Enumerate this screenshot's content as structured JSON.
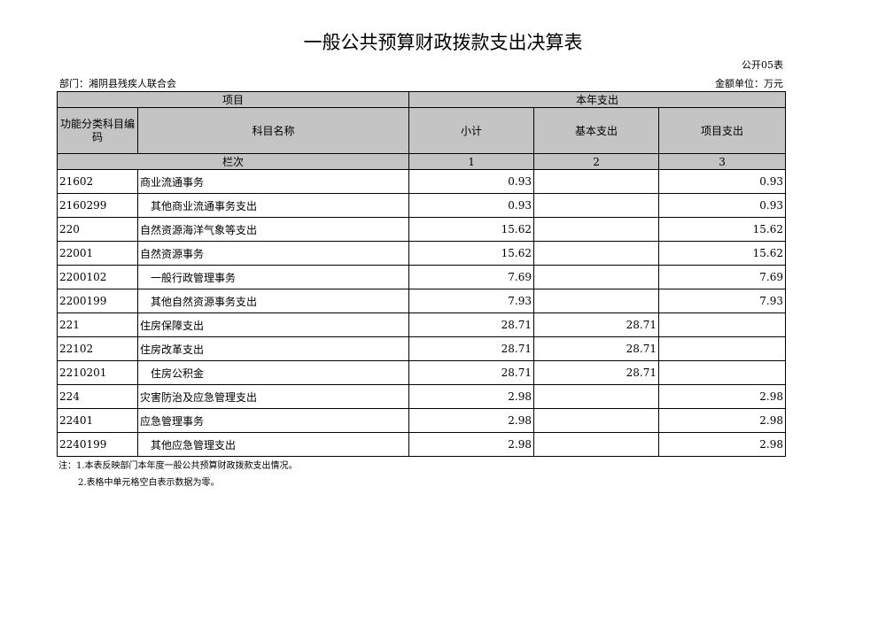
{
  "header": {
    "title": "一般公共预算财政拨款支出决算表",
    "form_no": "公开05表",
    "department": "部门：湘阴县残疾人联合会",
    "unit": "金额单位：万元"
  },
  "table": {
    "group_headers": [
      "项目",
      "本年支出"
    ],
    "columns": [
      "功能分类科目编码",
      "科目名称",
      "小计",
      "基本支出",
      "项目支出"
    ],
    "index_label": "栏次",
    "index_numbers": [
      "1",
      "2",
      "3"
    ],
    "rows": [
      {
        "code": "21602",
        "name": "商业流通事务",
        "subtotal": "0.93",
        "project": "0.93"
      },
      {
        "code": "2160299",
        "name": "其他商业流通事务支出",
        "subtotal": "0.93",
        "project": "0.93"
      },
      {
        "code": "220",
        "name": "自然资源海洋气象等支出",
        "subtotal": "15.62",
        "project": "15.62"
      },
      {
        "code": "22001",
        "name": "自然资源事务",
        "subtotal": "15.62",
        "project": "15.62"
      },
      {
        "code": "2200102",
        "name": "一般行政管理事务",
        "subtotal": "7.69",
        "project": "7.69"
      },
      {
        "code": "2200199",
        "name": "其他自然资源事务支出",
        "subtotal": "7.93",
        "project": "7.93"
      },
      {
        "code": "221",
        "name": "住房保障支出",
        "subtotal": "28.71",
        "basic": "28.71"
      },
      {
        "code": "22102",
        "name": "住房改革支出",
        "subtotal": "28.71",
        "basic": "28.71"
      },
      {
        "code": "2210201",
        "name": "住房公积金",
        "subtotal": "28.71",
        "basic": "28.71"
      },
      {
        "code": "224",
        "name": "灾害防治及应急管理支出",
        "subtotal": "2.98",
        "project": "2.98"
      },
      {
        "code": "22401",
        "name": "应急管理事务",
        "subtotal": "2.98",
        "project": "2.98"
      },
      {
        "code": "2240199",
        "name": "其他应急管理支出",
        "subtotal": "2.98",
        "project": "2.98"
      }
    ]
  },
  "notes": [
    "注：1.本表反映部门本年度一般公共预算财政拨款支出情况。",
    "2.表格中单元格空白表示数据为零。"
  ]
}
